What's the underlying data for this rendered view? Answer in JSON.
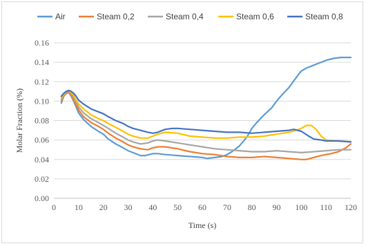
{
  "chart_data": {
    "type": "line",
    "xlabel": "Time (s)",
    "ylabel": "Molar Fraction (%)",
    "xlim": [
      0,
      120
    ],
    "ylim": [
      0,
      0.16
    ],
    "x_ticks": [
      "0",
      "10",
      "20",
      "30",
      "40",
      "50",
      "60",
      "70",
      "80",
      "90",
      "100",
      "110",
      "120"
    ],
    "y_ticks": [
      "0.00",
      "0.02",
      "0.04",
      "0.06",
      "0.08",
      "0.10",
      "0.12",
      "0.14",
      "0.16"
    ],
    "grid": "horizontal",
    "legend_position": "top",
    "series": [
      {
        "name": "Air",
        "color": "#5b9bd5",
        "x": [
          3,
          4,
          5,
          6,
          7,
          8,
          9,
          10,
          12,
          15,
          18,
          20,
          22,
          25,
          28,
          30,
          32,
          35,
          37,
          40,
          42,
          45,
          50,
          55,
          60,
          62,
          65,
          68,
          70,
          72,
          75,
          78,
          80,
          82,
          85,
          88,
          90,
          92,
          95,
          97,
          99,
          100,
          102,
          105,
          108,
          110,
          113,
          116,
          118,
          120
        ],
        "y": [
          0.098,
          0.105,
          0.108,
          0.109,
          0.105,
          0.1,
          0.094,
          0.088,
          0.081,
          0.074,
          0.069,
          0.066,
          0.061,
          0.056,
          0.052,
          0.049,
          0.047,
          0.044,
          0.044,
          0.046,
          0.046,
          0.045,
          0.044,
          0.043,
          0.042,
          0.041,
          0.042,
          0.043,
          0.045,
          0.048,
          0.054,
          0.063,
          0.072,
          0.078,
          0.086,
          0.093,
          0.1,
          0.106,
          0.114,
          0.121,
          0.128,
          0.131,
          0.134,
          0.137,
          0.14,
          0.142,
          0.144,
          0.145,
          0.145,
          0.145
        ]
      },
      {
        "name": "Steam 0,2",
        "color": "#ed7d31",
        "x": [
          3,
          4,
          5,
          6,
          7,
          8,
          9,
          10,
          12,
          15,
          18,
          20,
          22,
          25,
          28,
          30,
          32,
          35,
          38,
          40,
          42,
          45,
          50,
          55,
          60,
          65,
          70,
          75,
          80,
          85,
          90,
          95,
          100,
          102,
          105,
          108,
          110,
          112,
          115,
          118,
          120
        ],
        "y": [
          0.1,
          0.105,
          0.108,
          0.109,
          0.106,
          0.101,
          0.096,
          0.091,
          0.084,
          0.078,
          0.074,
          0.071,
          0.067,
          0.062,
          0.058,
          0.055,
          0.053,
          0.051,
          0.05,
          0.052,
          0.053,
          0.053,
          0.051,
          0.048,
          0.046,
          0.045,
          0.043,
          0.042,
          0.042,
          0.043,
          0.042,
          0.041,
          0.04,
          0.04,
          0.042,
          0.044,
          0.045,
          0.046,
          0.048,
          0.052,
          0.056
        ]
      },
      {
        "name": "Steam 0,4",
        "color": "#a5a5a5",
        "x": [
          3,
          4,
          5,
          6,
          7,
          8,
          9,
          10,
          12,
          15,
          18,
          20,
          22,
          25,
          28,
          30,
          32,
          35,
          38,
          40,
          42,
          45,
          50,
          55,
          60,
          65,
          70,
          75,
          80,
          85,
          90,
          95,
          100,
          105,
          110,
          115,
          120
        ],
        "y": [
          0.102,
          0.106,
          0.109,
          0.11,
          0.108,
          0.104,
          0.099,
          0.094,
          0.088,
          0.082,
          0.078,
          0.075,
          0.072,
          0.067,
          0.063,
          0.06,
          0.058,
          0.056,
          0.057,
          0.059,
          0.06,
          0.059,
          0.057,
          0.055,
          0.053,
          0.051,
          0.05,
          0.049,
          0.048,
          0.048,
          0.049,
          0.048,
          0.047,
          0.048,
          0.049,
          0.05,
          0.05
        ]
      },
      {
        "name": "Steam 0,6",
        "color": "#ffc000",
        "x": [
          3,
          4,
          5,
          6,
          7,
          8,
          9,
          10,
          12,
          15,
          18,
          20,
          22,
          25,
          28,
          30,
          32,
          35,
          38,
          40,
          42,
          45,
          50,
          55,
          60,
          65,
          70,
          75,
          80,
          85,
          90,
          95,
          98,
          100,
          102,
          104,
          106,
          108,
          110,
          115,
          120
        ],
        "y": [
          0.104,
          0.107,
          0.11,
          0.111,
          0.109,
          0.106,
          0.101,
          0.097,
          0.092,
          0.086,
          0.082,
          0.08,
          0.077,
          0.073,
          0.069,
          0.066,
          0.064,
          0.062,
          0.062,
          0.064,
          0.066,
          0.068,
          0.067,
          0.064,
          0.063,
          0.062,
          0.062,
          0.063,
          0.063,
          0.064,
          0.066,
          0.068,
          0.07,
          0.072,
          0.075,
          0.075,
          0.071,
          0.064,
          0.06,
          0.059,
          0.058
        ]
      },
      {
        "name": "Steam 0,8",
        "color": "#4472c4",
        "x": [
          3,
          4,
          5,
          6,
          7,
          8,
          9,
          10,
          12,
          15,
          18,
          20,
          22,
          25,
          28,
          30,
          32,
          35,
          38,
          40,
          42,
          45,
          48,
          50,
          55,
          60,
          65,
          70,
          75,
          80,
          85,
          90,
          95,
          97,
          100,
          103,
          105,
          108,
          110,
          115,
          120
        ],
        "y": [
          0.105,
          0.108,
          0.11,
          0.111,
          0.11,
          0.108,
          0.105,
          0.101,
          0.097,
          0.092,
          0.089,
          0.087,
          0.084,
          0.08,
          0.077,
          0.074,
          0.072,
          0.07,
          0.068,
          0.067,
          0.068,
          0.071,
          0.072,
          0.072,
          0.071,
          0.07,
          0.069,
          0.068,
          0.068,
          0.067,
          0.068,
          0.069,
          0.07,
          0.071,
          0.069,
          0.064,
          0.061,
          0.06,
          0.059,
          0.059,
          0.058
        ]
      }
    ]
  }
}
